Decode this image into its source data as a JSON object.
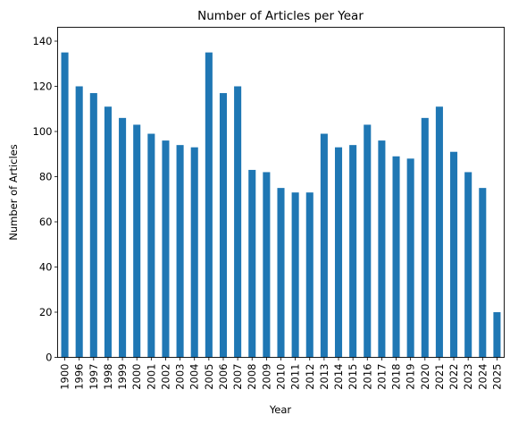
{
  "chart_data": {
    "type": "bar",
    "title": "Number of Articles per Year",
    "xlabel": "Year",
    "ylabel": "Number of Articles",
    "ylim": [
      0,
      140
    ],
    "yticks": [
      0,
      20,
      40,
      60,
      80,
      100,
      120,
      140
    ],
    "grid": false,
    "legend": "none",
    "bar_color": "#1f77b4",
    "categories": [
      "1900",
      "1996",
      "1997",
      "1998",
      "1999",
      "2000",
      "2001",
      "2002",
      "2003",
      "2004",
      "2005",
      "2006",
      "2007",
      "2008",
      "2009",
      "2010",
      "2011",
      "2012",
      "2013",
      "2014",
      "2015",
      "2016",
      "2017",
      "2018",
      "2019",
      "2020",
      "2021",
      "2022",
      "2023",
      "2024",
      "2025"
    ],
    "values": [
      135,
      120,
      117,
      111,
      106,
      103,
      99,
      96,
      94,
      93,
      135,
      117,
      120,
      83,
      82,
      75,
      73,
      73,
      99,
      93,
      94,
      103,
      96,
      89,
      88,
      106,
      111,
      91,
      82,
      75,
      20
    ]
  }
}
